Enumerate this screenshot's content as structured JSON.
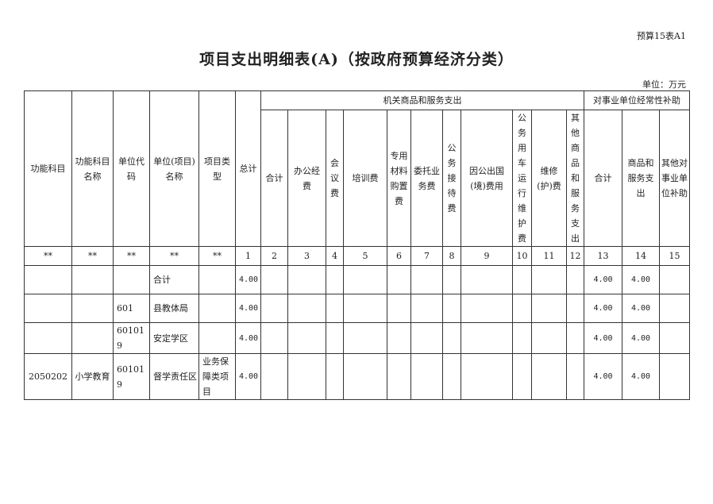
{
  "form_code": "预算15表A1",
  "title": "项目支出明细表(A)（按政府预算经济分类）",
  "unit": "单位：万元",
  "header": {
    "fixed": [
      "功能科目",
      "功能科目名称",
      "单位代码",
      "单位(项目)名称",
      "项目类型",
      "总计"
    ],
    "group1": "机关商品和服务支出",
    "group1_cols": [
      "合计",
      "办公经费",
      "会议费",
      "培训费",
      "专用材料购置费",
      "委托业务费",
      "公务接待费",
      "因公出国(境)费用",
      "公务用车运行维护费",
      "维修(护)费",
      "其他商品和服务支出"
    ],
    "group2": "对事业单位经常性补助",
    "group2_cols": [
      "合计",
      "商品和服务支出",
      "其他对事业单位补助"
    ],
    "numbers": [
      "**",
      "**",
      "**",
      "**",
      "**",
      "1",
      "2",
      "3",
      "4",
      "5",
      "6",
      "7",
      "8",
      "9",
      "10",
      "11",
      "12",
      "13",
      "14",
      "15"
    ]
  },
  "rows": [
    [
      "",
      "",
      "",
      "合计",
      "",
      "4.00",
      "",
      "",
      "",
      "",
      "",
      "",
      "",
      "",
      "",
      "",
      "",
      "4.00",
      "4.00",
      ""
    ],
    [
      "",
      "",
      "601",
      "县教体局",
      "",
      "4.00",
      "",
      "",
      "",
      "",
      "",
      "",
      "",
      "",
      "",
      "",
      "",
      "4.00",
      "4.00",
      ""
    ],
    [
      "",
      "",
      "601019",
      "安定学区",
      "",
      "4.00",
      "",
      "",
      "",
      "",
      "",
      "",
      "",
      "",
      "",
      "",
      "",
      "4.00",
      "4.00",
      ""
    ],
    [
      "2050202",
      "小学教育",
      "601019",
      "督学责任区",
      "业务保障类项目",
      "4.00",
      "",
      "",
      "",
      "",
      "",
      "",
      "",
      "",
      "",
      "",
      "",
      "4.00",
      "4.00",
      ""
    ]
  ]
}
